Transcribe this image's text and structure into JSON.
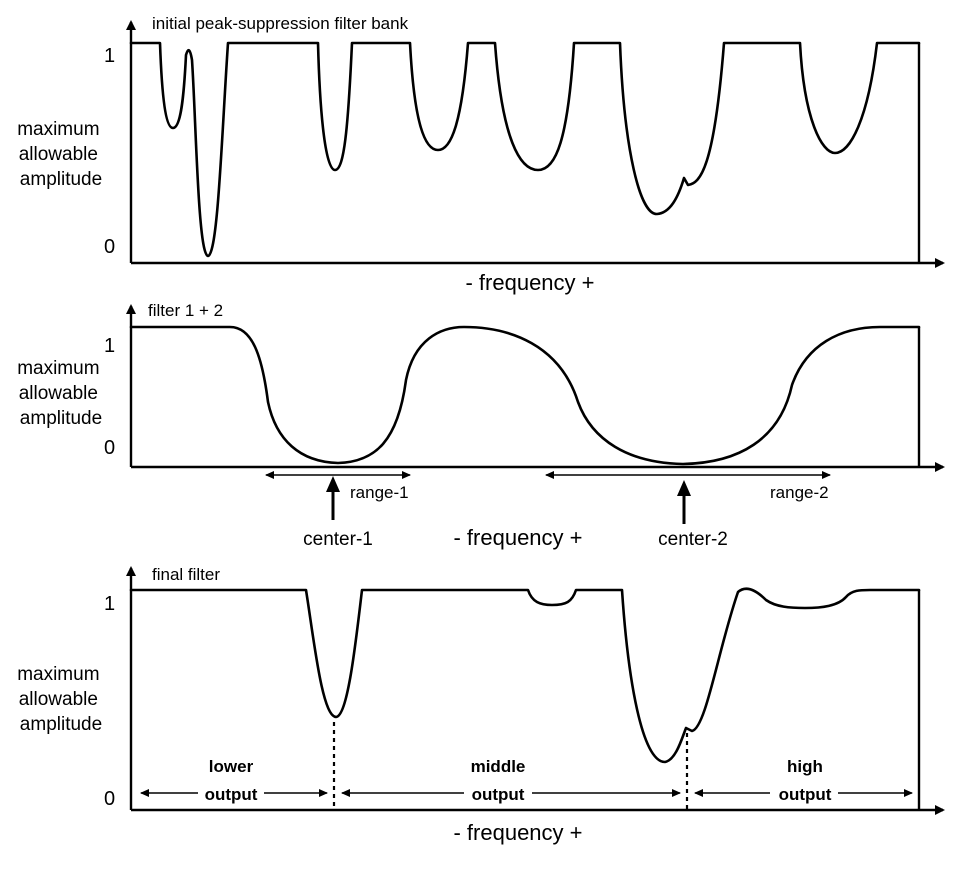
{
  "panel1": {
    "title": "initial peak-suppression filter bank",
    "ylabel": [
      "maximum",
      "allowable",
      "amplitude"
    ],
    "y_top": "1",
    "y_bottom": "0",
    "xlabel": "-  frequency +"
  },
  "panel2": {
    "title": "filter 1 + 2",
    "ylabel": [
      "maximum",
      "allowable",
      "amplitude"
    ],
    "y_top": "1",
    "y_bottom": "0",
    "xlabel": "-  frequency +",
    "range1": "range-1",
    "range2": "range-2",
    "center1": "center-1",
    "center2": "center-2"
  },
  "panel3": {
    "title": "final filter",
    "ylabel": [
      "maximum",
      "allowable",
      "amplitude"
    ],
    "y_top": "1",
    "y_bottom": "0",
    "xlabel": "-  frequency +",
    "bands": [
      {
        "line1": "lower",
        "line2": "output"
      },
      {
        "line1": "middle",
        "line2": "output"
      },
      {
        "line1": "high",
        "line2": "output"
      }
    ]
  }
}
